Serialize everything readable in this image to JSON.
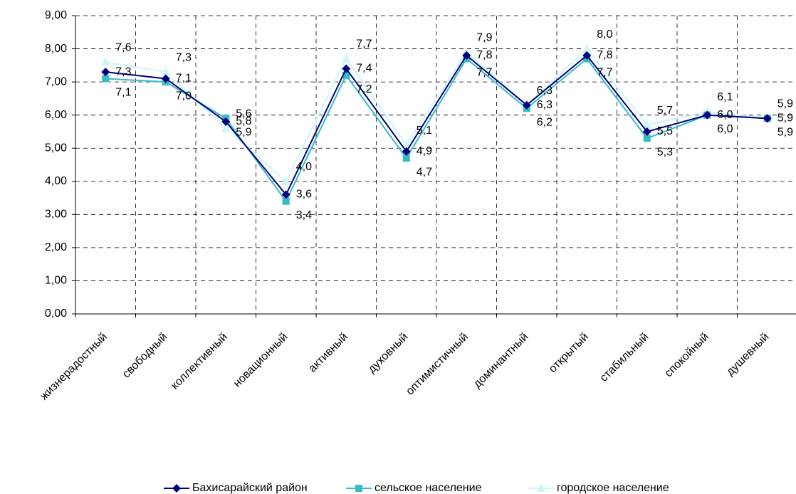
{
  "chart_data": {
    "type": "line",
    "categories": [
      "жизнерадостный",
      "свободный",
      "коллективный",
      "новационный",
      "активный",
      "духовный",
      "оптимистичный",
      "доминантный",
      "открытый",
      "стабильный",
      "спокойный",
      "душевный"
    ],
    "series": [
      {
        "name": "Бахисарайский район",
        "color": "#000080",
        "marker": "diamond",
        "values": [
          7.3,
          7.1,
          5.8,
          3.6,
          7.4,
          4.9,
          7.8,
          6.3,
          7.8,
          5.5,
          6.0,
          5.9
        ],
        "value_labels": [
          "7,3",
          "7,1",
          "5,8",
          "3,6",
          "7,4",
          "4,9",
          "7,8",
          "6,3",
          "7,8",
          "5,5",
          "6,0",
          "5,9"
        ]
      },
      {
        "name": "сельское население",
        "color": "#33bcc4",
        "marker": "square",
        "values": [
          7.1,
          7.0,
          5.9,
          3.4,
          7.2,
          4.7,
          7.7,
          6.2,
          7.7,
          5.3,
          6.0,
          5.9
        ],
        "value_labels": [
          "7,1",
          "7,0",
          "5,9",
          "3,4",
          "7,2",
          "4,7",
          "7,7",
          "6,2",
          "7,7",
          "5,3",
          "6,0",
          "5,9"
        ]
      },
      {
        "name": "городское население",
        "color": "#ccf5fa",
        "marker": "triangle",
        "values": [
          7.6,
          7.3,
          5.6,
          4.0,
          7.7,
          5.1,
          7.9,
          6.3,
          8.0,
          5.7,
          6.1,
          5.9
        ],
        "value_labels": [
          "7,6",
          "7,3",
          "5,6",
          "4,0",
          "7,7",
          "5,1",
          "7,9",
          "6,3",
          "8,0",
          "5,7",
          "6,1",
          "5,9"
        ]
      }
    ],
    "ylim": [
      0,
      9
    ],
    "yticks": [
      {
        "value": 0,
        "label": "0,00"
      },
      {
        "value": 1,
        "label": "1,00"
      },
      {
        "value": 2,
        "label": "2,00"
      },
      {
        "value": 3,
        "label": "3,00"
      },
      {
        "value": 4,
        "label": "4,00"
      },
      {
        "value": 5,
        "label": "5,00"
      },
      {
        "value": 6,
        "label": "6,00"
      },
      {
        "value": 7,
        "label": "7,00"
      },
      {
        "value": 8,
        "label": "8,00"
      },
      {
        "value": 9,
        "label": "9,00"
      }
    ],
    "grid": true,
    "legend": "bottom"
  }
}
